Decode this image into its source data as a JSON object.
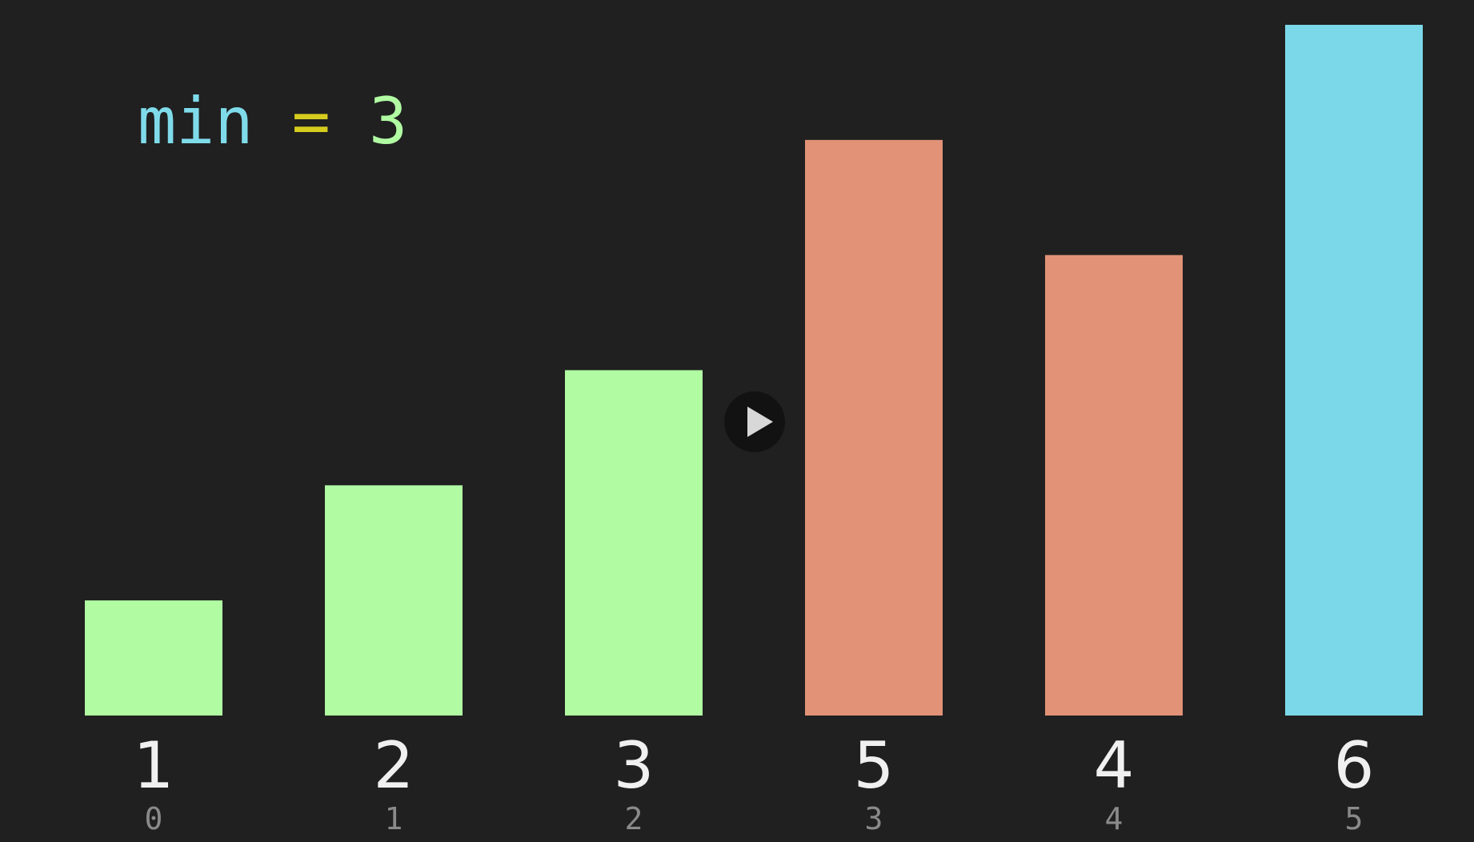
{
  "expression": {
    "variable": "min",
    "operator": "=",
    "value": "3",
    "colors": {
      "variable": "#7fdbea",
      "operator": "#d6cc1e",
      "value": "#b1fca3"
    }
  },
  "play_button": {
    "icon": "play-icon"
  },
  "chart_data": {
    "type": "bar",
    "categories": [
      "0",
      "1",
      "2",
      "3",
      "4",
      "5"
    ],
    "values": [
      1,
      2,
      3,
      5,
      4,
      6
    ],
    "value_labels": [
      "1",
      "2",
      "3",
      "5",
      "4",
      "6"
    ],
    "index_labels": [
      "0",
      "1",
      "2",
      "3",
      "4",
      "5"
    ],
    "bar_states": [
      "sorted",
      "sorted",
      "sorted",
      "unsorted",
      "unsorted",
      "current"
    ],
    "state_colors": {
      "sorted": "#b1fca3",
      "unsorted": "#e29277",
      "current": "#7bd8e8"
    },
    "label_color": "#f0f0f0",
    "index_color": "#8a8a8a",
    "ylim": [
      0,
      6
    ],
    "grid": false,
    "legend": "none"
  }
}
